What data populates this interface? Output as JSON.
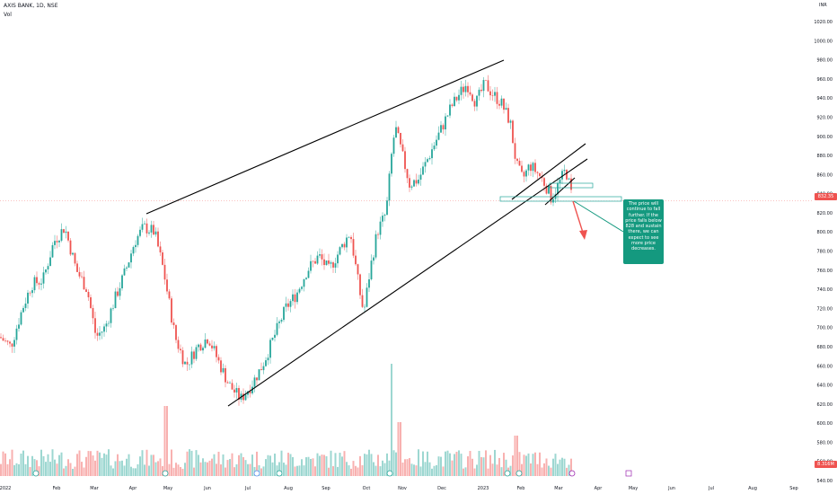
{
  "header": {
    "symbol_line": "AXIS BANK, 1D, NSE",
    "volume_label": "Vol",
    "currency": "INR"
  },
  "annotation": {
    "text": "The price will continue to fall further. If the price falls below 828 and sustain there, we can expect to see more price decreases."
  },
  "price_labels": {
    "last_price": "832.35",
    "volume": "8.316M"
  },
  "colors": {
    "up": "#26a69a",
    "down": "#ef5350",
    "trendline": "#000000",
    "annotation_bg": "#14997f",
    "zone": "#26a69a"
  },
  "chart_data": {
    "type": "candlestick",
    "x_axis_labels": [
      "2022",
      "Feb",
      "Mar",
      "Apr",
      "May",
      "Jun",
      "Jul",
      "Aug",
      "Sep",
      "Oct",
      "Nov",
      "Dec",
      "2023",
      "Feb",
      "Mar",
      "Apr",
      "May",
      "Jun",
      "Jul",
      "Aug",
      "Sep"
    ],
    "y_ticks": [
      1020,
      1000,
      980,
      960,
      940,
      920,
      900,
      880,
      860,
      840,
      820,
      800,
      780,
      760,
      740,
      720,
      700,
      680,
      660,
      640,
      620,
      600,
      580,
      560,
      540
    ],
    "ylim": [
      540,
      1020
    ],
    "last_price": 832.35,
    "support_level": 828,
    "series": [
      {
        "name": "price",
        "points": [
          [
            "2022",
            690
          ],
          [
            "Jan-mid",
            720
          ],
          [
            "Feb",
            805
          ],
          [
            "Feb-mid",
            760
          ],
          [
            "Mar",
            680
          ],
          [
            "Mar-mid",
            720
          ],
          [
            "Apr",
            800
          ],
          [
            "Apr-mid",
            790
          ],
          [
            "May",
            700
          ],
          [
            "May-mid",
            660
          ],
          [
            "Jun",
            680
          ],
          [
            "Jun-mid",
            650
          ],
          [
            "Jul",
            625
          ],
          [
            "Jul-mid",
            660
          ],
          [
            "Aug",
            720
          ],
          [
            "Aug-mid",
            750
          ],
          [
            "Sep",
            780
          ],
          [
            "Sep-mid",
            800
          ],
          [
            "Oct",
            720
          ],
          [
            "Oct-mid",
            830
          ],
          [
            "Nov",
            900
          ],
          [
            "Nov-mid",
            860
          ],
          [
            "Dec",
            920
          ],
          [
            "Dec-mid",
            945
          ],
          [
            "2023",
            950
          ],
          [
            "Jan-mid",
            900
          ],
          [
            "Feb",
            860
          ],
          [
            "Feb-mid",
            850
          ],
          [
            "Mar",
            845
          ],
          [
            "Mar-end",
            832
          ]
        ]
      }
    ],
    "trendlines": [
      {
        "from": [
          "Apr",
          815
        ],
        "to": [
          "2023",
          975
        ]
      },
      {
        "from": [
          "Jun",
          615
        ],
        "to": [
          "Mar",
          895
        ]
      },
      {
        "from": [
          "Feb",
          828
        ],
        "to": [
          "Mar",
          875
        ]
      }
    ]
  }
}
